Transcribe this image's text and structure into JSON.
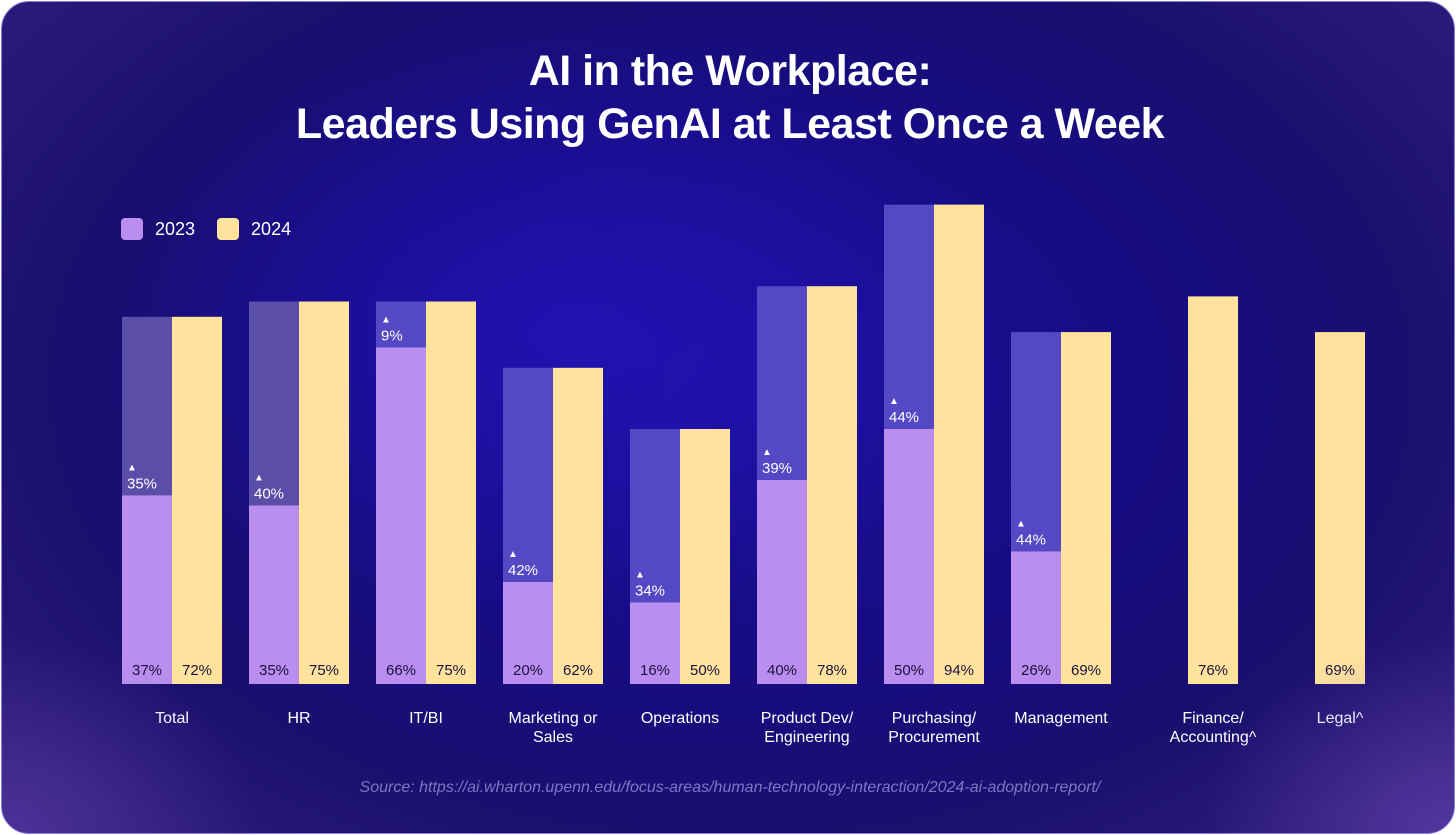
{
  "title_line1": "AI in the Workplace:",
  "title_line2": "Leaders Using GenAI at Least Once a Week",
  "source": "Source:  https://ai.wharton.upenn.edu/focus-areas/human-technology-interaction/2024-ai-adoption-report/",
  "colors": {
    "y2023": "#b98eee",
    "y2024": "#ffe39c",
    "increase_band": "#5548c4",
    "increase_band_total_hr": "#5a4ea8"
  },
  "chart_data": {
    "type": "bar",
    "categories": [
      "Total",
      "HR",
      "IT/BI",
      "Marketing or Sales",
      "Operations",
      "Product Dev/ Engineering",
      "Purchasing/ Procurement",
      "Management",
      "Finance/ Accounting^",
      "Legal^"
    ],
    "category_lines": [
      [
        "Total"
      ],
      [
        "HR"
      ],
      [
        "IT/BI"
      ],
      [
        "Marketing or",
        "Sales"
      ],
      [
        "Operations"
      ],
      [
        "Product Dev/",
        "Engineering"
      ],
      [
        "Purchasing/",
        "Procurement"
      ],
      [
        "Management"
      ],
      [
        "Finance/",
        "Accounting^"
      ],
      [
        "Legal^"
      ]
    ],
    "series": [
      {
        "name": "2023",
        "values": [
          37,
          35,
          66,
          20,
          16,
          40,
          50,
          26,
          null,
          null
        ],
        "labels": [
          "37%",
          "35%",
          "66%",
          "20%",
          "16%",
          "40%",
          "50%",
          "26%",
          null,
          null
        ]
      },
      {
        "name": "2024",
        "values": [
          72,
          75,
          75,
          62,
          50,
          78,
          94,
          69,
          76,
          69
        ],
        "labels": [
          "72%",
          "75%",
          "75%",
          "62%",
          "50%",
          "78%",
          "94%",
          "69%",
          "76%",
          "69%"
        ]
      }
    ],
    "increase": {
      "symbol": "▲",
      "values": [
        35,
        40,
        9,
        42,
        34,
        39,
        44,
        44,
        null,
        null
      ],
      "labels": [
        "35%",
        "40%",
        "9%",
        "42%",
        "34%",
        "39%",
        "44%",
        "44%",
        null,
        null
      ]
    },
    "legend": [
      "2023",
      "2024"
    ],
    "legend_position": "top-left",
    "ylim": [
      0,
      100
    ],
    "grid": false,
    "axes_visible": false
  }
}
